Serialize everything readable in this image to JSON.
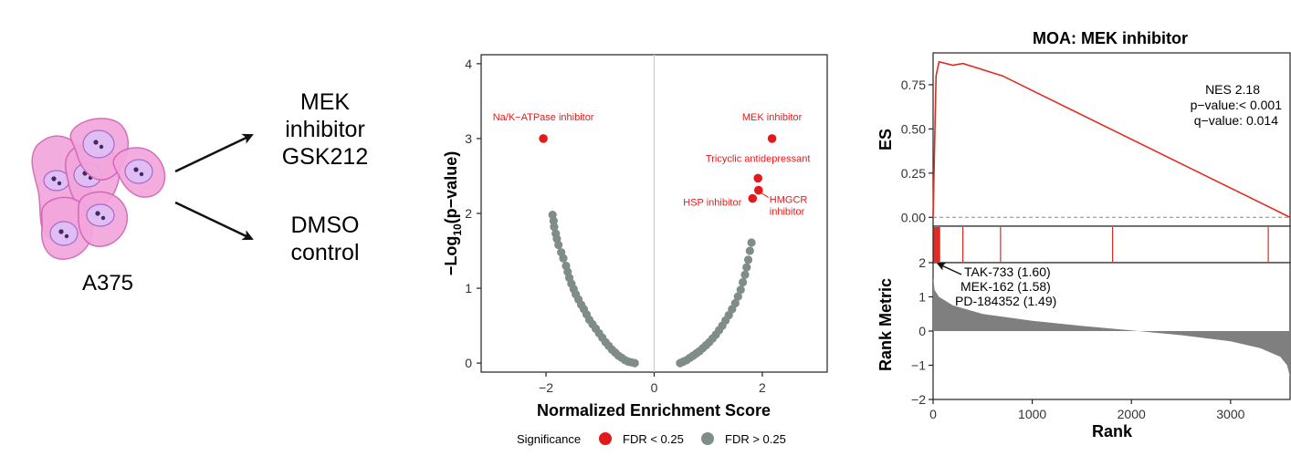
{
  "panel_a": {
    "cell_line": "A375",
    "treatments": [
      "MEK\ninhibitor\nGSK212",
      "DMSO\ncontrol"
    ],
    "colors": {
      "cell_fill": "#f3a6dc",
      "cell_stroke": "#d163b5",
      "nucleus_fill": "#e0bdf2",
      "nucleus_stroke": "#a56ac9",
      "nucleolus": "#3b2a66",
      "arrow": "#111111"
    }
  },
  "chart_data": [
    {
      "type": "scatter",
      "title": "",
      "xlabel": "Normalized Enrichment Score",
      "ylabel_main": "−Log",
      "ylabel_sub": "10",
      "ylabel_tail": "(p−value)",
      "xlim": [
        -3.2,
        3.2
      ],
      "ylim": [
        -0.12,
        4.12
      ],
      "xticks": [
        -2,
        0,
        2
      ],
      "yticks": [
        0,
        1,
        2,
        3,
        4
      ],
      "grid": false,
      "zero_line_x": 0,
      "legend": {
        "title": "Significance",
        "position": "bottom",
        "entries": [
          "FDR < 0.25",
          "FDR > 0.25"
        ]
      },
      "colors": {
        "significant": "#e31a1c",
        "nonsignificant": "#808c88",
        "label": "#e31a1c",
        "zero_line": "#cccccc"
      },
      "series": [
        {
          "name": "FDR < 0.25",
          "points": [
            {
              "x": -2.05,
              "y": 3.0,
              "label": "Na/K−ATPase inhibitor"
            },
            {
              "x": 2.18,
              "y": 3.0,
              "label": "MEK inhibitor"
            },
            {
              "x": 1.92,
              "y": 2.47,
              "label": "Tricyclic antidepressant"
            },
            {
              "x": 1.93,
              "y": 2.31,
              "label": "HMGCR\ninhibitor"
            },
            {
              "x": 1.82,
              "y": 2.2,
              "label": "HSP inhibitor"
            }
          ]
        },
        {
          "name": "FDR > 0.25",
          "points": [
            {
              "x": -1.88,
              "y": 1.98
            },
            {
              "x": -1.86,
              "y": 1.9
            },
            {
              "x": -1.85,
              "y": 1.82
            },
            {
              "x": -1.82,
              "y": 1.73
            },
            {
              "x": -1.8,
              "y": 1.66
            },
            {
              "x": -1.77,
              "y": 1.58
            },
            {
              "x": -1.72,
              "y": 1.48
            },
            {
              "x": -1.68,
              "y": 1.4
            },
            {
              "x": -1.63,
              "y": 1.3
            },
            {
              "x": -1.6,
              "y": 1.22
            },
            {
              "x": -1.57,
              "y": 1.14
            },
            {
              "x": -1.53,
              "y": 1.06
            },
            {
              "x": -1.49,
              "y": 0.99
            },
            {
              "x": -1.45,
              "y": 0.92
            },
            {
              "x": -1.4,
              "y": 0.85
            },
            {
              "x": -1.35,
              "y": 0.78
            },
            {
              "x": -1.3,
              "y": 0.72
            },
            {
              "x": -1.25,
              "y": 0.65
            },
            {
              "x": -1.2,
              "y": 0.58
            },
            {
              "x": -1.14,
              "y": 0.52
            },
            {
              "x": -1.08,
              "y": 0.46
            },
            {
              "x": -1.02,
              "y": 0.4
            },
            {
              "x": -0.96,
              "y": 0.34
            },
            {
              "x": -0.9,
              "y": 0.28
            },
            {
              "x": -0.84,
              "y": 0.23
            },
            {
              "x": -0.78,
              "y": 0.18
            },
            {
              "x": -0.72,
              "y": 0.14
            },
            {
              "x": -0.66,
              "y": 0.1
            },
            {
              "x": -0.6,
              "y": 0.07
            },
            {
              "x": -0.54,
              "y": 0.04
            },
            {
              "x": -0.48,
              "y": 0.02
            },
            {
              "x": -0.42,
              "y": 0.01
            },
            {
              "x": -0.36,
              "y": 0.0
            },
            {
              "x": 0.48,
              "y": 0.0
            },
            {
              "x": 0.54,
              "y": 0.02
            },
            {
              "x": 0.6,
              "y": 0.04
            },
            {
              "x": 0.66,
              "y": 0.07
            },
            {
              "x": 0.72,
              "y": 0.1
            },
            {
              "x": 0.78,
              "y": 0.13
            },
            {
              "x": 0.84,
              "y": 0.16
            },
            {
              "x": 0.9,
              "y": 0.2
            },
            {
              "x": 0.96,
              "y": 0.24
            },
            {
              "x": 1.02,
              "y": 0.28
            },
            {
              "x": 1.08,
              "y": 0.33
            },
            {
              "x": 1.14,
              "y": 0.38
            },
            {
              "x": 1.2,
              "y": 0.44
            },
            {
              "x": 1.26,
              "y": 0.5
            },
            {
              "x": 1.32,
              "y": 0.57
            },
            {
              "x": 1.38,
              "y": 0.64
            },
            {
              "x": 1.44,
              "y": 0.72
            },
            {
              "x": 1.5,
              "y": 0.8
            },
            {
              "x": 1.55,
              "y": 0.89
            },
            {
              "x": 1.6,
              "y": 0.98
            },
            {
              "x": 1.64,
              "y": 1.08
            },
            {
              "x": 1.68,
              "y": 1.18
            },
            {
              "x": 1.71,
              "y": 1.28
            },
            {
              "x": 1.74,
              "y": 1.38
            },
            {
              "x": 1.77,
              "y": 1.5
            },
            {
              "x": 1.8,
              "y": 1.61
            }
          ]
        }
      ]
    },
    {
      "type": "line",
      "title": "MOA: MEK inhibitor",
      "ylabel": "ES",
      "xlim": [
        0,
        3600
      ],
      "ylim": [
        -0.05,
        0.93
      ],
      "yticks": [
        0.0,
        0.25,
        0.5,
        0.75
      ],
      "ytick_labels": [
        "0.00",
        "0.25",
        "0.50",
        "0.75"
      ],
      "zero_line_y": 0,
      "annotation": [
        "NES 2.18",
        "p−value:< 0.001",
        "q−value: 0.014"
      ],
      "colors": {
        "line": "#e02c20",
        "dash": "#888888"
      },
      "series": [
        {
          "name": "",
          "x": [
            0,
            30,
            60,
            200,
            300,
            700,
            3600
          ],
          "y": [
            0.0,
            0.8,
            0.88,
            0.86,
            0.87,
            0.8,
            0.0
          ]
        }
      ]
    },
    {
      "type": "bar",
      "title": "",
      "ylabel": "",
      "xlim": [
        0,
        3600
      ],
      "hits": [
        10,
        18,
        26,
        34,
        42,
        50,
        58,
        66,
        300,
        680,
        1810,
        3380
      ],
      "colors": {
        "hit": "#e02c20"
      }
    },
    {
      "type": "area",
      "title": "",
      "xlabel": "Rank",
      "ylabel": "Rank Metric",
      "xlim": [
        0,
        3600
      ],
      "ylim": [
        -2,
        2
      ],
      "xticks": [
        0,
        1000,
        2000,
        3000
      ],
      "yticks": [
        -2,
        -1,
        0,
        1,
        2
      ],
      "colors": {
        "fill": "#7f7f7f"
      },
      "series": [
        {
          "name": "",
          "x": [
            0,
            15,
            60,
            200,
            500,
            1000,
            1500,
            2000,
            2500,
            3000,
            3300,
            3500,
            3570,
            3600
          ],
          "y": [
            1.6,
            1.2,
            1.0,
            0.75,
            0.5,
            0.3,
            0.15,
            0.02,
            -0.12,
            -0.3,
            -0.5,
            -0.75,
            -1.0,
            -1.35
          ]
        }
      ],
      "annotations": [
        "TAK-733 (1.60)",
        "MEK-162 (1.58)",
        "PD-184352 (1.49)"
      ]
    }
  ]
}
